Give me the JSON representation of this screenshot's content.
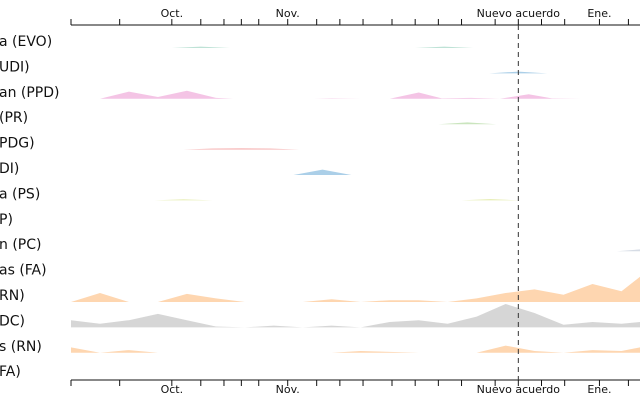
{
  "chart_data": {
    "type": "area",
    "event": {
      "label": "Nuevo acuerdo",
      "x": 38.6
    },
    "x_tick_labels": [
      {
        "x": 8.7,
        "label": "Oct."
      },
      {
        "x": 18.7,
        "label": "Nov."
      },
      {
        "x": 38.6,
        "label": "Nuevo acuerdo"
      },
      {
        "x": 45.6,
        "label": "Ene."
      }
    ],
    "x_minor_ticks": [
      0,
      4.2,
      8.7,
      11.2,
      13.2,
      14.7,
      16.2,
      18.7,
      21.2,
      23.2,
      25.2,
      27.7,
      29.7,
      31.7,
      33.7,
      36.6,
      38.6,
      40.6,
      42.6,
      45.6,
      48.1
    ],
    "x_range": [
      0,
      49.1
    ],
    "series": [
      {
        "name": "a (EVO)",
        "color": "#a8d8c8",
        "x": [
          8.7,
          11.2,
          13.7,
          29.7,
          32.2,
          34.7
        ],
        "y": [
          0,
          0.08,
          0,
          0,
          0.08,
          0
        ]
      },
      {
        "name": "UDI)",
        "color": "#8fbfe0",
        "x": [
          36.1,
          38.6,
          41.1
        ],
        "y": [
          0,
          0.1,
          0
        ]
      },
      {
        "name": "an (PPD)",
        "color": "#f0b0dc",
        "x": [
          0,
          2.5,
          5,
          7.5,
          10,
          12.5,
          14,
          18.5,
          21,
          22.5,
          25,
          27.5,
          30,
          32,
          34.5,
          37,
          39.5,
          41.5,
          44,
          46.5,
          49.1
        ],
        "y": [
          0,
          0,
          0.4,
          0.1,
          0.45,
          0.05,
          0,
          0,
          0,
          0.02,
          0,
          0,
          0.35,
          0.02,
          0.05,
          0,
          0.25,
          0.02,
          0,
          0,
          0
        ]
      },
      {
        "name": "(PR)",
        "color": "#b8dca8",
        "x": [
          31.7,
          34.2,
          36.7
        ],
        "y": [
          0,
          0.1,
          0
        ]
      },
      {
        "name": "PDG)",
        "color": "#f4a3a3",
        "x": [
          9.7,
          12.2,
          14.7,
          17.2,
          19.7
        ],
        "y": [
          0,
          0.06,
          0.08,
          0.06,
          0
        ]
      },
      {
        "name": "DI)",
        "color": "#8fbfe0",
        "x": [
          19.2,
          21.7,
          24.2
        ],
        "y": [
          0,
          0.3,
          0
        ]
      },
      {
        "name": "a (PS)",
        "color": "#e0e8a0",
        "x": [
          7.2,
          9.7,
          12.2,
          33.7,
          36.2,
          38.7
        ],
        "y": [
          0,
          0.06,
          0,
          0,
          0.08,
          0
        ]
      },
      {
        "name": "P)",
        "color": "#dddddd",
        "x": [],
        "y": []
      },
      {
        "name": "n (PC)",
        "color": "#c8d0dc",
        "x": [
          47.1,
          49.1
        ],
        "y": [
          0,
          0.1
        ]
      },
      {
        "name": "as (FA)",
        "color": "#dddddd",
        "x": [],
        "y": []
      },
      {
        "name": "RN)",
        "color": "#fdc895",
        "x": [
          0,
          2.5,
          5,
          7.5,
          10,
          12.5,
          15,
          17.5,
          20,
          22.5,
          25,
          27.5,
          30,
          32.5,
          35,
          37.5,
          40,
          42.5,
          45,
          47.5,
          49.1
        ],
        "y": [
          0,
          0.5,
          0,
          0,
          0.45,
          0.2,
          0,
          0,
          0,
          0.15,
          0,
          0.1,
          0.1,
          0,
          0.2,
          0.5,
          0.7,
          0.4,
          1.0,
          0.6,
          1.4
        ]
      },
      {
        "name": "DC)",
        "color": "#c8c8c8",
        "x": [
          0,
          2.5,
          5,
          7.5,
          10,
          12.5,
          15,
          17.5,
          20,
          22.5,
          25,
          27.5,
          30,
          32.5,
          35,
          37.5,
          40,
          42.5,
          45,
          47.5,
          49.1
        ],
        "y": [
          0.4,
          0.2,
          0.4,
          0.75,
          0.4,
          0.05,
          0,
          0.1,
          0,
          0.1,
          0,
          0.3,
          0.4,
          0.2,
          0.6,
          1.3,
          0.8,
          0.15,
          0.3,
          0.2,
          0.3
        ]
      },
      {
        "name": "s (RN)",
        "color": "#fdc895",
        "x": [
          0,
          2.5,
          5,
          7.5,
          10,
          22.5,
          25,
          27.5,
          30,
          32.5,
          35,
          37.5,
          40,
          42.5,
          45,
          47.5,
          49.1
        ],
        "y": [
          0.3,
          0,
          0.15,
          0,
          0,
          0,
          0.1,
          0.05,
          0,
          0,
          0,
          0.4,
          0.1,
          0,
          0.15,
          0.1,
          0.3
        ]
      },
      {
        "name": "FA)",
        "color": "#dddddd",
        "x": [],
        "y": []
      }
    ]
  }
}
